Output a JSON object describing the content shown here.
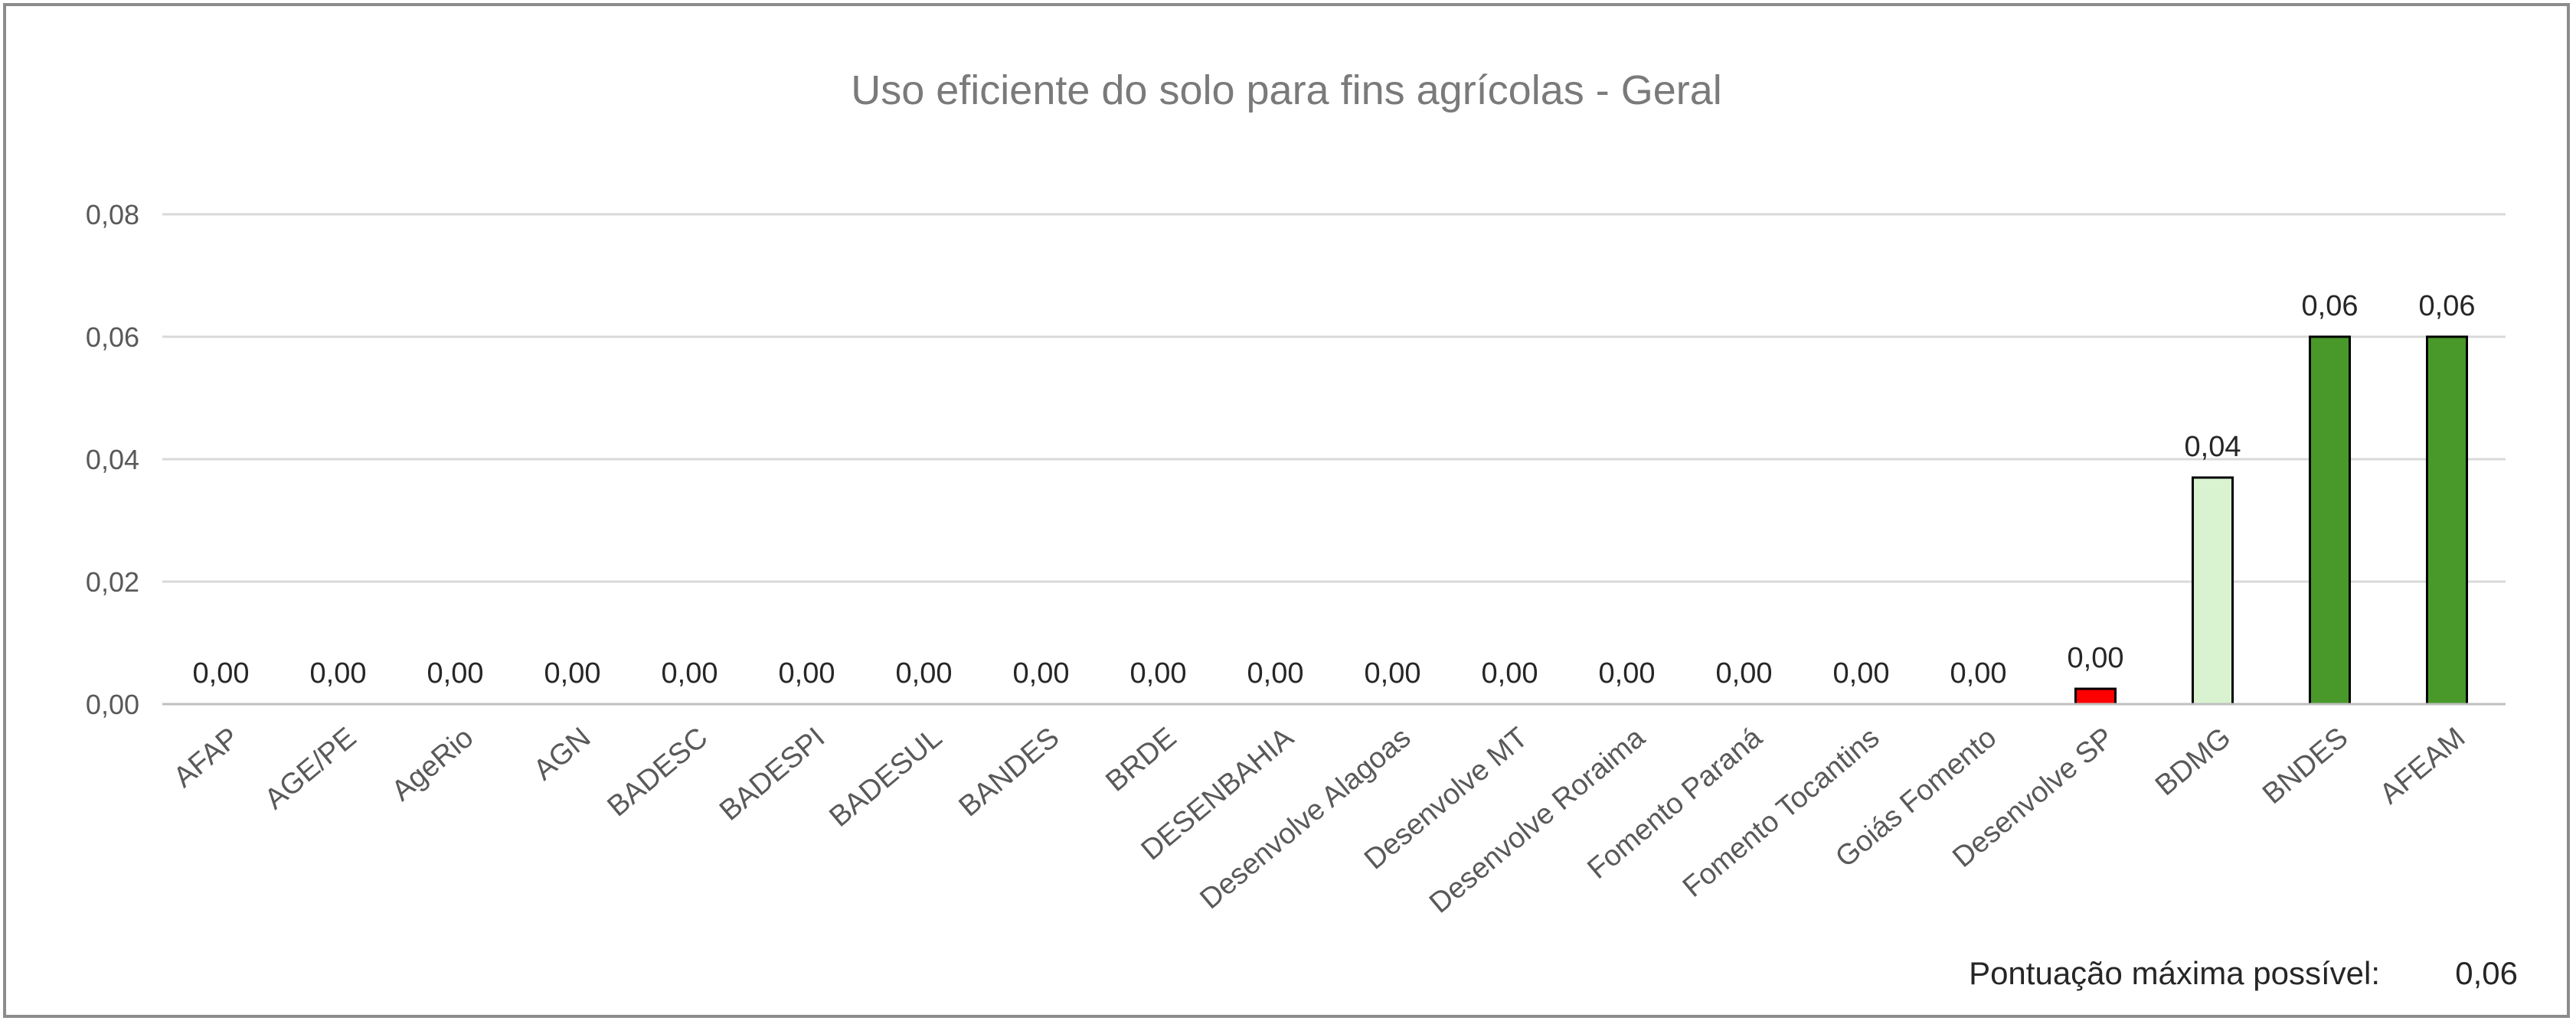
{
  "chart_data": {
    "type": "bar",
    "title": "Uso eficiente do solo para fins agrícolas - Geral",
    "xlabel": "",
    "ylabel": "",
    "ylim": [
      0,
      0.08
    ],
    "y_ticks": [
      {
        "value": 0,
        "label": "0,00"
      },
      {
        "value": 0.02,
        "label": "0,02"
      },
      {
        "value": 0.04,
        "label": "0,04"
      },
      {
        "value": 0.06,
        "label": "0,06"
      },
      {
        "value": 0.08,
        "label": "0,08"
      }
    ],
    "grid": true,
    "legend": "none",
    "categories": [
      "AFAP",
      "AGE/PE",
      "AgeRio",
      "AGN",
      "BADESC",
      "BADESPI",
      "BADESUL",
      "BANDES",
      "BRDE",
      "DESENBAHIA",
      "Desenvolve Alagoas",
      "Desenvolve MT",
      "Desenvolve Roraima",
      "Fomento Paraná",
      "Fomento Tocantins",
      "Goiás Fomento",
      "Desenvolve SP",
      "BDMG",
      "BNDES",
      "AFEAM"
    ],
    "values": [
      0,
      0,
      0,
      0,
      0,
      0,
      0,
      0,
      0,
      0,
      0,
      0,
      0,
      0,
      0,
      0,
      0.0025,
      0.037,
      0.06,
      0.06
    ],
    "data_labels": [
      "0,00",
      "0,00",
      "0,00",
      "0,00",
      "0,00",
      "0,00",
      "0,00",
      "0,00",
      "0,00",
      "0,00",
      "0,00",
      "0,00",
      "0,00",
      "0,00",
      "0,00",
      "0,00",
      "0,00",
      "0,04",
      "0,06",
      "0,06"
    ],
    "bar_colors": [
      "#ff0000",
      "#ff0000",
      "#ff0000",
      "#ff0000",
      "#ff0000",
      "#ff0000",
      "#ff0000",
      "#ff0000",
      "#ff0000",
      "#ff0000",
      "#ff0000",
      "#ff0000",
      "#ff0000",
      "#ff0000",
      "#ff0000",
      "#ff0000",
      "#ff0000",
      "#d9f2d0",
      "#48982a",
      "#48982a"
    ],
    "annotation": {
      "label": "Pontuação máxima possível:",
      "value": "0,06"
    }
  },
  "colors": {
    "gridline": "#d9d9d9",
    "axis": "#bfbfbf",
    "bar_outline": "#000000"
  }
}
